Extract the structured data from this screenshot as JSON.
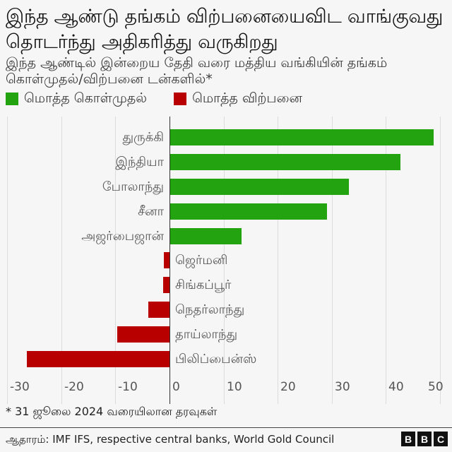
{
  "header": {
    "title": "இந்த ஆண்டு தங்கம் விற்பனையைவிட வாங்குவது தொடர்ந்து அதிகரித்து வருகிறது",
    "subtitle": "இந்த ஆண்டில் இன்றைய தேதி வரை மத்திய வங்கியின் தங்கம் கொள்முதல்/விற்பனை டன்களில்*"
  },
  "legend": {
    "items": [
      {
        "label": "மொத்த கொள்முதல்",
        "color": "#22a30f"
      },
      {
        "label": "மொத்த விற்பனை",
        "color": "#b80000"
      }
    ]
  },
  "colors": {
    "purchase": "#22a30f",
    "sale": "#b80000",
    "background": "#f6f6f6",
    "grid": "#dcdcdc"
  },
  "chart_data": {
    "type": "bar",
    "orientation": "horizontal",
    "title": "இந்த ஆண்டு தங்கம் விற்பனையைவிட வாங்குவது தொடர்ந்து அதிகரித்து வருகிறது",
    "subtitle": "இந்த ஆண்டில் இன்றைய தேதி வரை மத்திய வங்கியின் தங்கம் கொள்முதல்/விற்பனை டன்களில்*",
    "xlabel": "",
    "ylabel": "",
    "xlim": [
      -30,
      50
    ],
    "xticks": [
      -30,
      -20,
      -10,
      0,
      10,
      20,
      30,
      40,
      50
    ],
    "xtick_labels": [
      "-30",
      "-20",
      "-10",
      "0",
      "10",
      "20",
      "30",
      "40",
      "50"
    ],
    "grid": true,
    "legend_position": "top",
    "categories": [
      "துருக்கி",
      "இந்தியா",
      "போலாந்து",
      "சீனா",
      "அஜர்பைஜான்",
      "ஜெர்மனி",
      "சிங்கப்பூர்",
      "நெதர்லாந்து",
      "தாய்லாந்து",
      "பிலிப்பைன்ஸ்"
    ],
    "values": [
      48.7,
      42.6,
      33.0,
      29.0,
      13.2,
      -1.0,
      -1.2,
      -3.9,
      -9.7,
      -26.4
    ],
    "series": [
      {
        "name": "மொத்த கொள்முதல்",
        "color": "#22a30f",
        "categories": [
          "துருக்கி",
          "இந்தியா",
          "போலாந்து",
          "சீனா",
          "அஜர்பைஜான்"
        ],
        "values": [
          48.7,
          42.6,
          33.0,
          29.0,
          13.2
        ]
      },
      {
        "name": "மொத்த விற்பனை",
        "color": "#b80000",
        "categories": [
          "ஜெர்மனி",
          "சிங்கப்பூர்",
          "நெதர்லாந்து",
          "தாய்லாந்து",
          "பிலிப்பைன்ஸ்"
        ],
        "values": [
          -1.0,
          -1.2,
          -3.9,
          -9.7,
          -26.4
        ]
      }
    ]
  },
  "footnote": "* 31 ஜூலை 2024 வரையிலான தரவுகள்",
  "source": "ஆதாரம்: IMF IFS, respective central banks, World Gold Council",
  "logo": {
    "letters": [
      "B",
      "B",
      "C"
    ]
  }
}
